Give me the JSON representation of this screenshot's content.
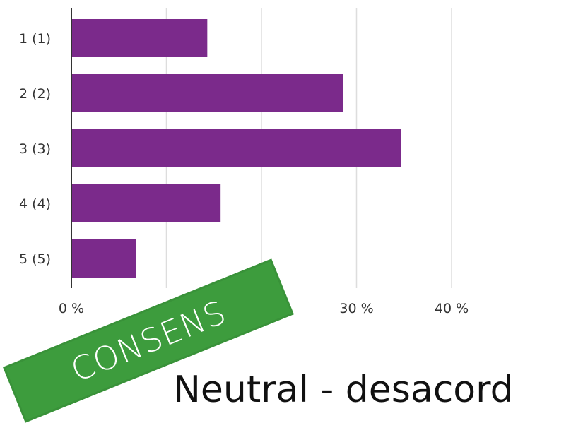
{
  "chart_data": {
    "type": "bar",
    "orientation": "horizontal",
    "categories": [
      "1 (1)",
      "2 (2)",
      "3 (3)",
      "4 (4)",
      "5 (5)"
    ],
    "values": [
      14.3,
      28.6,
      34.7,
      15.7,
      6.8
    ],
    "xlim": [
      0,
      45
    ],
    "x_ticks": [
      0,
      10,
      20,
      30,
      40
    ],
    "x_tick_labels": [
      "0 %",
      "",
      "",
      "30 %",
      "40 %"
    ],
    "grid": true,
    "bar_color": "#7b2a8b",
    "gridline_color": "#dddddd"
  },
  "overlay": {
    "stamp_text": "CONSENS",
    "stamp_color": "#3d9c3d",
    "caption": "Neutral - desacord"
  }
}
